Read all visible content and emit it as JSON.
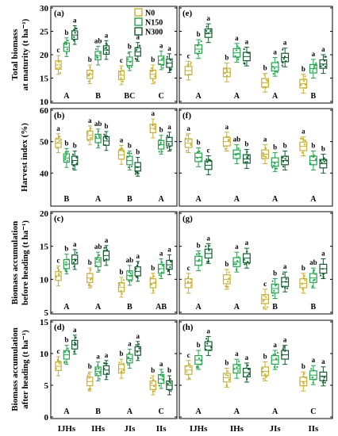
{
  "figure": {
    "categories": [
      "IJHs",
      "IHs",
      "JIs",
      "IIs"
    ],
    "treatments": [
      "N0",
      "N150",
      "N300"
    ],
    "colors": {
      "N0": "#c8b02a",
      "N150": "#22a64b",
      "N300": "#0d5e2b"
    }
  },
  "legend": [
    {
      "label": "N0",
      "color": "#c8b02a"
    },
    {
      "label": "N150",
      "color": "#22a64b"
    },
    {
      "label": "N300",
      "color": "#0d5e2b"
    }
  ],
  "rows": [
    {
      "ylabel_lines": [
        "Total biomass",
        "at maturity (t ha⁻¹)"
      ]
    },
    {
      "ylabel_lines": [
        "Harvest index (%)"
      ]
    },
    {
      "ylabel_lines": [
        "Biomass accumulation",
        "before heading (t ha⁻¹)"
      ]
    },
    {
      "ylabel_lines": [
        "Biomass accumulation",
        "after heading (t ha⁻¹)"
      ]
    }
  ],
  "chart_data": [
    {
      "type": "box",
      "panel": "(a)",
      "row": 0,
      "col": 0,
      "ylim": [
        10,
        30
      ],
      "yticks": [
        10,
        15,
        20,
        25,
        30
      ],
      "categories": [
        "IJHs",
        "IHs",
        "JIs",
        "IIs"
      ],
      "series": [
        {
          "name": "N0",
          "values": [
            17.8,
            15.8,
            15.6,
            15.8
          ],
          "letters": [
            "c",
            "b",
            "c",
            "b"
          ]
        },
        {
          "name": "N150",
          "values": [
            21.6,
            19.8,
            18.6,
            18.8
          ],
          "letters": [
            "b",
            "ab",
            "b",
            "a"
          ]
        },
        {
          "name": "N300",
          "values": [
            24.2,
            21.0,
            20.6,
            18.2
          ],
          "letters": [
            "a",
            "a",
            "a",
            "a"
          ]
        }
      ],
      "group_letters": [
        "A",
        "B",
        "BC",
        "C"
      ]
    },
    {
      "type": "box",
      "panel": "(e)",
      "row": 0,
      "col": 1,
      "ylim": [
        10,
        30
      ],
      "yticks": [
        10,
        15,
        20,
        25,
        30
      ],
      "categories": [
        "IJHs",
        "IHs",
        "JIs",
        "IIs"
      ],
      "series": [
        {
          "name": "N0",
          "values": [
            16.6,
            16.2,
            14.0,
            13.8
          ],
          "letters": [
            "c",
            "b",
            "b",
            "b"
          ]
        },
        {
          "name": "N150",
          "values": [
            21.2,
            20.4,
            17.4,
            17.0
          ],
          "letters": [
            "b",
            "a",
            "a",
            "a"
          ]
        },
        {
          "name": "N300",
          "values": [
            24.6,
            19.6,
            19.4,
            18.0
          ],
          "letters": [
            "a",
            "a",
            "a",
            "a"
          ]
        }
      ],
      "group_letters": [
        "A",
        "A",
        "A",
        "B"
      ]
    },
    {
      "type": "box",
      "panel": "(b)",
      "row": 1,
      "col": 0,
      "ylim": [
        30,
        60
      ],
      "yticks": [
        40,
        50,
        60
      ],
      "categories": [
        "IJHs",
        "IHs",
        "JIs",
        "IIs"
      ],
      "series": [
        {
          "name": "N0",
          "values": [
            49.5,
            52.0,
            45.8,
            54.2
          ],
          "letters": [
            "a",
            "a",
            "a",
            "a"
          ]
        },
        {
          "name": "N150",
          "values": [
            44.8,
            51.0,
            44.0,
            49.0
          ],
          "letters": [
            "b",
            "ab",
            "b",
            "b"
          ]
        },
        {
          "name": "N300",
          "values": [
            44.0,
            50.2,
            42.0,
            50.0
          ],
          "letters": [
            "b",
            "b",
            "b",
            "a"
          ]
        }
      ],
      "group_letters": [
        "B",
        "A",
        "B",
        "A"
      ]
    },
    {
      "type": "box",
      "panel": "(f)",
      "row": 1,
      "col": 1,
      "ylim": [
        30,
        60
      ],
      "yticks": [
        40,
        50,
        60
      ],
      "categories": [
        "IJHs",
        "IHs",
        "JIs",
        "IIs"
      ],
      "series": [
        {
          "name": "N0",
          "values": [
            49.5,
            50.0,
            46.0,
            48.5
          ],
          "letters": [
            "a",
            "a",
            "a",
            "a"
          ]
        },
        {
          "name": "N150",
          "values": [
            45.0,
            46.0,
            43.5,
            44.0
          ],
          "letters": [
            "b",
            "ab",
            "b",
            "b"
          ]
        },
        {
          "name": "N300",
          "values": [
            42.5,
            44.5,
            44.0,
            43.0
          ],
          "letters": [
            "c",
            "b",
            "b",
            "b"
          ]
        }
      ],
      "group_letters": [
        "A",
        "A",
        "A",
        "A"
      ]
    },
    {
      "type": "box",
      "panel": "(c)",
      "row": 2,
      "col": 0,
      "ylim": [
        5,
        20
      ],
      "yticks": [
        5,
        10,
        15,
        20
      ],
      "categories": [
        "IJHs",
        "IHs",
        "JIs",
        "IIs"
      ],
      "series": [
        {
          "name": "N0",
          "values": [
            10.5,
            10.2,
            8.8,
            9.4
          ],
          "letters": [
            "c",
            "b",
            "b",
            "b"
          ]
        },
        {
          "name": "N150",
          "values": [
            12.3,
            12.6,
            10.6,
            11.6
          ],
          "letters": [
            "b",
            "ab",
            "ab",
            "a"
          ]
        },
        {
          "name": "N300",
          "values": [
            13.0,
            13.6,
            11.2,
            12.2
          ],
          "letters": [
            "a",
            "a",
            "a",
            "a"
          ]
        }
      ],
      "group_letters": [
        "A",
        "A",
        "B",
        "AB"
      ]
    },
    {
      "type": "box",
      "panel": "(g)",
      "row": 2,
      "col": 1,
      "ylim": [
        5,
        20
      ],
      "yticks": [
        5,
        10,
        15,
        20
      ],
      "categories": [
        "IJHs",
        "IHs",
        "JIs",
        "IIs"
      ],
      "series": [
        {
          "name": "N0",
          "values": [
            9.4,
            10.0,
            7.0,
            9.4
          ],
          "letters": [
            "c",
            "b",
            "c",
            "b"
          ]
        },
        {
          "name": "N150",
          "values": [
            12.8,
            12.6,
            8.6,
            10.2
          ],
          "letters": [
            "b",
            "a",
            "b",
            "ab"
          ]
        },
        {
          "name": "N300",
          "values": [
            13.9,
            13.2,
            9.6,
            11.6
          ],
          "letters": [
            "a",
            "a",
            "a",
            "a"
          ]
        }
      ],
      "group_letters": [
        "A",
        "A",
        "B",
        "B"
      ]
    },
    {
      "type": "box",
      "panel": "(d)",
      "row": 3,
      "col": 0,
      "ylim": [
        0,
        15
      ],
      "yticks": [
        0,
        5,
        10,
        15
      ],
      "categories": [
        "IJHs",
        "IHs",
        "JIs",
        "IIs"
      ],
      "series": [
        {
          "name": "N0",
          "values": [
            8.0,
            5.6,
            7.6,
            5.0
          ],
          "letters": [
            "c",
            "b",
            "b",
            "b"
          ]
        },
        {
          "name": "N150",
          "values": [
            9.8,
            7.2,
            9.2,
            6.0
          ],
          "letters": [
            "b",
            "a",
            "a",
            "a"
          ]
        },
        {
          "name": "N300",
          "values": [
            11.4,
            7.4,
            10.4,
            5.0
          ],
          "letters": [
            "a",
            "a",
            "a",
            "b"
          ]
        }
      ],
      "group_letters": [
        "A",
        "B",
        "A",
        "C"
      ]
    },
    {
      "type": "box",
      "panel": "(h)",
      "row": 3,
      "col": 1,
      "ylim": [
        0,
        15
      ],
      "yticks": [
        0,
        5,
        10,
        15
      ],
      "categories": [
        "IJHs",
        "IHs",
        "JIs",
        "IIs"
      ],
      "series": [
        {
          "name": "N0",
          "values": [
            7.4,
            6.2,
            7.2,
            5.6
          ],
          "letters": [
            "c",
            "b",
            "b",
            "b"
          ]
        },
        {
          "name": "N150",
          "values": [
            9.0,
            7.6,
            9.0,
            6.6
          ],
          "letters": [
            "b",
            "a",
            "a",
            "a"
          ]
        },
        {
          "name": "N300",
          "values": [
            11.2,
            7.0,
            9.8,
            6.4
          ],
          "letters": [
            "a",
            "a",
            "a",
            "a"
          ]
        }
      ],
      "group_letters": [
        "A",
        "A",
        "A",
        "C"
      ]
    }
  ]
}
